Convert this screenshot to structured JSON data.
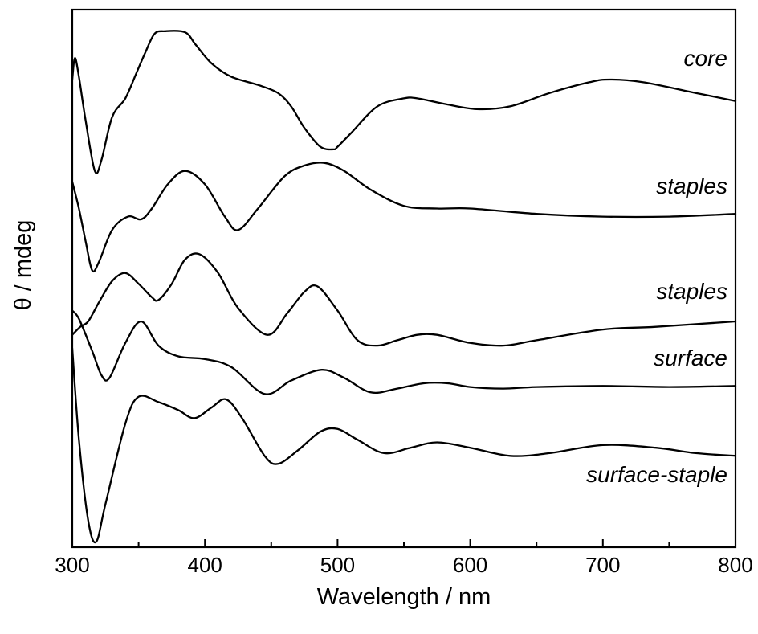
{
  "chart_data": {
    "type": "line",
    "xlabel": "Wavelength / nm",
    "ylabel": "θ / mdeg",
    "xlim": [
      300,
      800
    ],
    "ylim": [
      0,
      100
    ],
    "x_ticks": [
      300,
      400,
      500,
      600,
      700,
      800
    ],
    "x_tick_labels": [
      "300",
      "400",
      "500",
      "600",
      "700",
      "800"
    ],
    "y_tick_labels_shown": false,
    "grid": false,
    "legend": "none",
    "line_color": "#000000",
    "series": [
      {
        "name": "core",
        "x": [
          300,
          302,
          305,
          310,
          317,
          322,
          330,
          340,
          348,
          355,
          362,
          370,
          385,
          393,
          405,
          420,
          440,
          455,
          465,
          475,
          487,
          497,
          500,
          510,
          530,
          550,
          560,
          580,
          605,
          630,
          660,
          690,
          705,
          730,
          770,
          800
        ],
        "y": [
          87.0,
          91.0,
          87.5,
          79.5,
          70.0,
          72.0,
          80.0,
          83.5,
          88.0,
          92.0,
          95.5,
          96.0,
          95.8,
          93.5,
          90.0,
          87.5,
          86.0,
          84.5,
          82.0,
          78.0,
          74.5,
          74.0,
          74.5,
          77.0,
          82.0,
          83.5,
          83.5,
          82.5,
          81.5,
          82.0,
          84.5,
          86.5,
          87.0,
          86.5,
          84.5,
          83.0
        ]
      },
      {
        "name": "staples",
        "x": [
          300,
          305,
          310,
          315,
          320,
          330,
          342,
          352,
          360,
          372,
          385,
          400,
          415,
          425,
          440,
          460,
          475,
          490,
          505,
          525,
          550,
          575,
          600,
          650,
          700,
          750,
          800
        ],
        "y": [
          68.0,
          63.0,
          57.0,
          51.5,
          53.0,
          59.0,
          61.5,
          61.0,
          63.0,
          67.5,
          70.0,
          67.5,
          61.5,
          59.0,
          63.0,
          69.0,
          71.0,
          71.5,
          70.0,
          66.5,
          63.5,
          63.0,
          63.0,
          62.0,
          61.5,
          61.5,
          62.0
        ]
      },
      {
        "name": "staples",
        "x": [
          300,
          306,
          312,
          320,
          330,
          340,
          350,
          360,
          365,
          375,
          385,
          396,
          410,
          425,
          447,
          462,
          475,
          485,
          500,
          515,
          530,
          545,
          560,
          575,
          600,
          625,
          650,
          700,
          740,
          800
        ],
        "y": [
          39.5,
          41.0,
          42.0,
          45.5,
          49.5,
          51.0,
          49.0,
          46.5,
          46.0,
          49.0,
          53.5,
          54.5,
          51.0,
          44.5,
          39.5,
          43.5,
          47.5,
          48.5,
          44.0,
          38.5,
          37.5,
          38.5,
          39.5,
          39.5,
          38.0,
          37.5,
          38.5,
          40.5,
          41.0,
          42.0
        ]
      },
      {
        "name": "surface",
        "x": [
          300,
          305,
          315,
          322,
          328,
          340,
          352,
          365,
          380,
          400,
          420,
          445,
          465,
          488,
          505,
          525,
          545,
          565,
          583,
          600,
          625,
          650,
          700,
          750,
          800
        ],
        "y": [
          44.0,
          42.5,
          36.5,
          32.0,
          31.5,
          38.0,
          42.0,
          37.5,
          35.5,
          35.0,
          33.5,
          28.5,
          31.0,
          33.0,
          31.5,
          28.8,
          29.5,
          30.5,
          30.5,
          29.8,
          29.5,
          29.8,
          30.0,
          29.8,
          30.0
        ]
      },
      {
        "name": "surface-staple",
        "x": [
          300,
          305,
          312,
          318,
          325,
          340,
          350,
          365,
          380,
          392,
          405,
          416,
          428,
          445,
          455,
          470,
          487,
          500,
          515,
          535,
          555,
          575,
          600,
          630,
          660,
          700,
          740,
          770,
          800
        ],
        "y": [
          37.0,
          20.0,
          5.0,
          1.0,
          8.0,
          23.0,
          28.0,
          27.0,
          25.5,
          24.0,
          26.0,
          27.5,
          24.0,
          17.0,
          15.5,
          18.0,
          21.5,
          22.0,
          20.0,
          17.5,
          18.5,
          19.5,
          18.5,
          17.0,
          17.5,
          19.0,
          18.5,
          17.5,
          17.0
        ]
      }
    ]
  }
}
